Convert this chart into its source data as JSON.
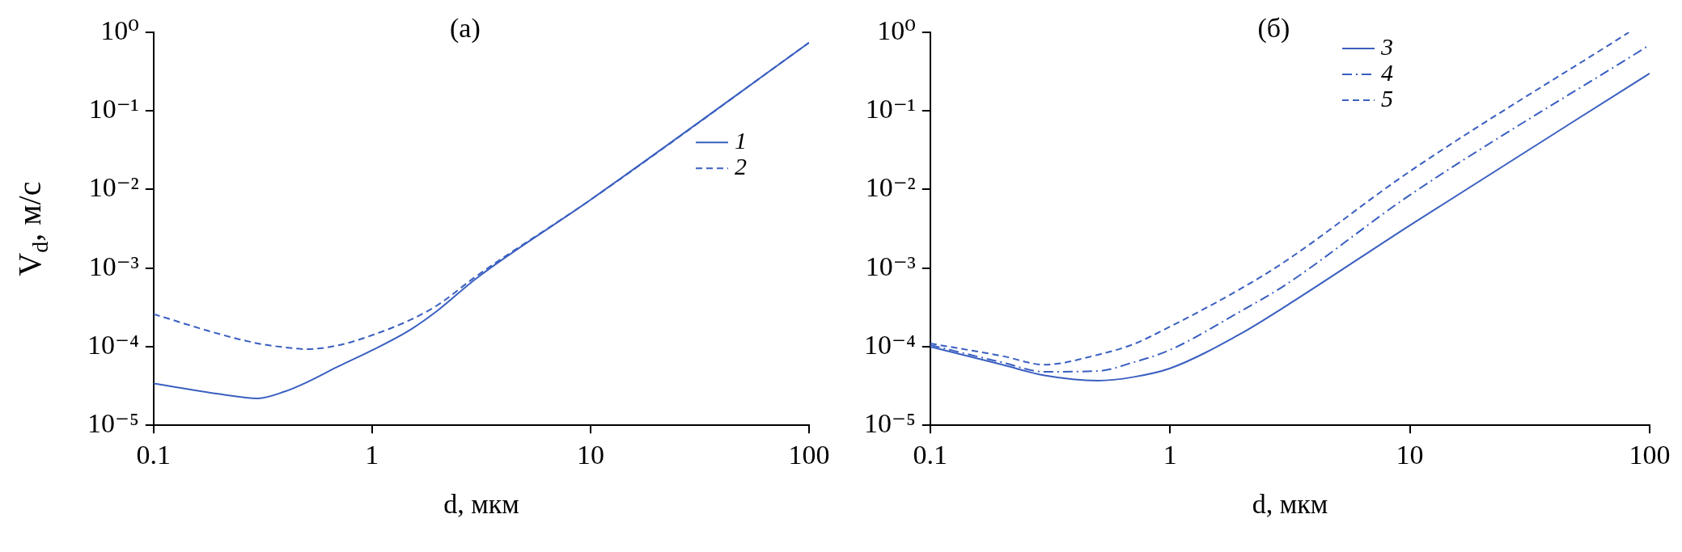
{
  "chart_data": [
    {
      "type": "line",
      "title": "(a)",
      "xlabel": "d, мкм",
      "ylabel": "V$_{d}$, м/с",
      "log": "xy",
      "legend": "right",
      "xlim": [
        0.1,
        100
      ],
      "xticks": [
        0.1,
        1,
        10,
        100
      ],
      "ylim": [
        1e-05,
        1
      ],
      "yticks": [
        {
          "value": 1e-05,
          "label": "10⁻⁵"
        },
        {
          "value": 0.0001,
          "label": "10⁻⁴"
        },
        {
          "value": 0.001,
          "label": "10⁻³"
        },
        {
          "value": 0.01,
          "label": "10⁻²"
        },
        {
          "value": 0.1,
          "label": "10⁻¹"
        },
        {
          "value": 1,
          "label": "10⁰"
        }
      ],
      "x": [
        0.1,
        0.2,
        0.3,
        0.4,
        0.5,
        0.7,
        1,
        1.5,
        2,
        3,
        10,
        100
      ],
      "series": [
        {
          "name": "1",
          "color": "#3a5fc0",
          "line_style": "solid",
          "values": [
            3.4e-05,
            2.5e-05,
            2.2e-05,
            2.7e-05,
            3.5e-05,
            5.6e-05,
            9e-05,
            0.000165,
            0.00029,
            0.00074,
            0.0074,
            0.74
          ]
        },
        {
          "name": "2",
          "color": "#3a5fc0",
          "line_style": "dashed",
          "values": [
            0.00026,
            0.000145,
            0.00011,
            9.8e-05,
            9.3e-05,
            0.000104,
            0.00014,
            0.00022,
            0.00034,
            0.00079,
            0.0074,
            0.74
          ]
        }
      ]
    },
    {
      "type": "line",
      "title": "(б)",
      "xlabel": "d, мкм",
      "log": "xy",
      "legend": "top right",
      "xlim": [
        0.1,
        100
      ],
      "xticks": [
        0.1,
        1,
        10,
        100
      ],
      "ylim": [
        1e-05,
        1
      ],
      "yticks": [
        {
          "value": 1e-05,
          "label": "10⁻⁵"
        },
        {
          "value": 0.0001,
          "label": "10⁻⁴"
        },
        {
          "value": 0.001,
          "label": "10⁻³"
        },
        {
          "value": 0.01,
          "label": "10⁻²"
        },
        {
          "value": 0.1,
          "label": "10⁻¹"
        },
        {
          "value": 1,
          "label": "10⁰"
        }
      ],
      "x": [
        0.1,
        0.2,
        0.3,
        0.5,
        0.7,
        1,
        2,
        3,
        10,
        100
      ],
      "series": [
        {
          "name": "3",
          "color": "#3a5fc0",
          "line_style": "solid",
          "values": [
            0.0001,
            5.9e-05,
            4.3e-05,
            3.7e-05,
            4.1e-05,
            5.3e-05,
            0.00015,
            0.00032,
            0.0035,
            0.3
          ]
        },
        {
          "name": "4",
          "color": "#3a5fc0",
          "line_style": "dashdot",
          "values": [
            0.000105,
            6.3e-05,
            4.8e-05,
            4.9e-05,
            6.3e-05,
            9.1e-05,
            0.00029,
            0.0006,
            0.0085,
            0.69
          ]
        },
        {
          "name": "5",
          "color": "#3a5fc0",
          "line_style": "dashed",
          "x": [
            0.1,
            0.2,
            0.3,
            0.5,
            0.7,
            1,
            2,
            3,
            10,
            82
          ],
          "values": [
            0.00011,
            7.6e-05,
            5.9e-05,
            7.9e-05,
            0.000107,
            0.00018,
            0.00056,
            0.0012,
            0.017,
            1
          ]
        }
      ]
    }
  ]
}
